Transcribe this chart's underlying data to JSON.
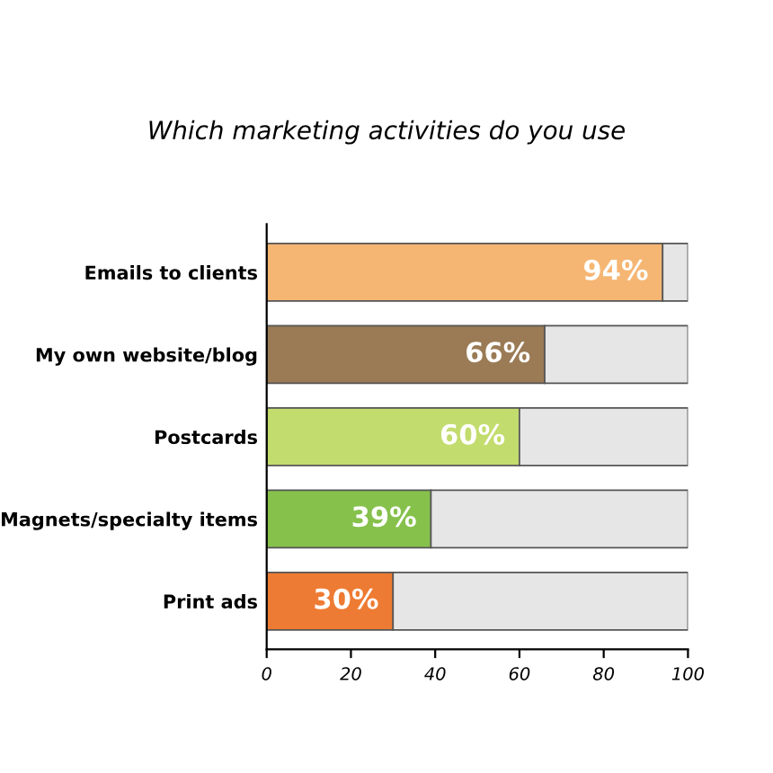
{
  "chart_data": {
    "type": "bar",
    "title": "Which marketing activities do you use",
    "orientation": "horizontal",
    "stacked": true,
    "categories": [
      "Emails to clients",
      "My own website/blog",
      "Postcards",
      "Magnets/specialty items",
      "Print ads"
    ],
    "series": [
      {
        "colors": [
          "#f5b673",
          "#9a7b55",
          "#c3dc6e",
          "#86c14c",
          "#ee7b33"
        ],
        "values": [
          94,
          66,
          60,
          39,
          30
        ],
        "value_labels": [
          "94%",
          "66%",
          "60%",
          "39%",
          "30%"
        ]
      },
      {
        "color": "#e6e6e6",
        "values": [
          6,
          34,
          40,
          61,
          70
        ]
      }
    ],
    "xlim": [
      0,
      100
    ],
    "xticks": [
      0,
      20,
      40,
      60,
      80,
      100
    ],
    "grid": false,
    "legend": false
  }
}
